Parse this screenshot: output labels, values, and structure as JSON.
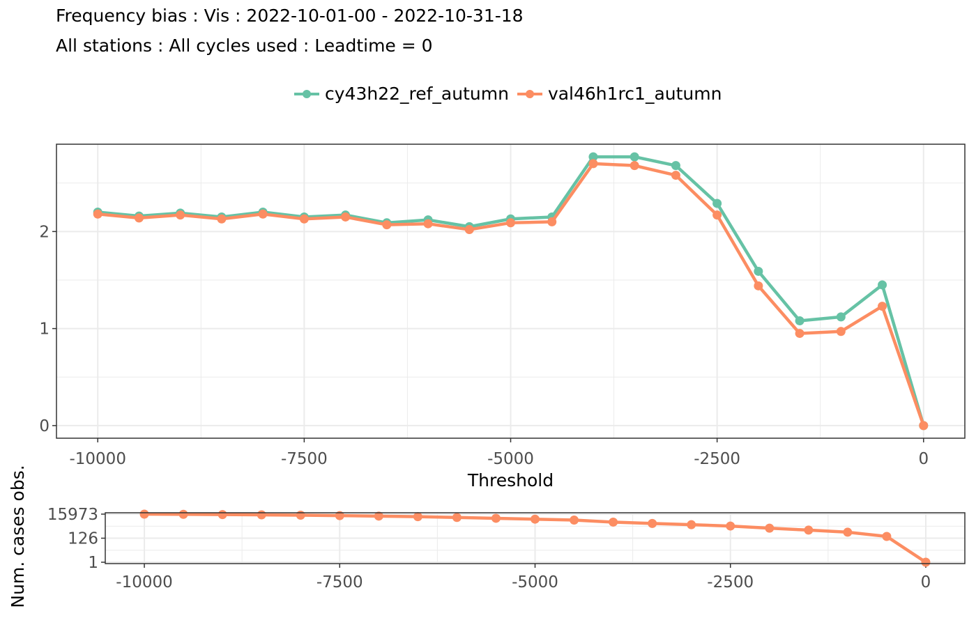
{
  "title": "Frequency bias : Vis : 2022-10-01-00 - 2022-10-31-18",
  "subtitle": "All stations : All cycles used : Leadtime = 0",
  "legend": {
    "placement": "top",
    "items": [
      {
        "label": "cy43h22_ref_autumn",
        "color": "#66c2a5"
      },
      {
        "label": "val46h1rc1_autumn",
        "color": "#fc8d62"
      }
    ]
  },
  "chart_data": [
    {
      "type": "line",
      "xlabel": "Threshold",
      "ylabel": "",
      "xlim": [
        -10500,
        500
      ],
      "ylim": [
        -0.13,
        2.9
      ],
      "xticks": [
        -10000,
        -7500,
        -5000,
        -2500,
        0
      ],
      "xtick_labels": [
        "-10000",
        "-7500",
        "-5000",
        "-2500",
        "0"
      ],
      "yticks": [
        0,
        1,
        2
      ],
      "ytick_labels": [
        "0",
        "1",
        "2"
      ],
      "grid": true,
      "x": [
        -10000,
        -9500,
        -9000,
        -8500,
        -8000,
        -7500,
        -7000,
        -6500,
        -6000,
        -5500,
        -5000,
        -4500,
        -4000,
        -3500,
        -3000,
        -2500,
        -2000,
        -1500,
        -1000,
        -500,
        0
      ],
      "series": [
        {
          "name": "cy43h22_ref_autumn",
          "color": "#66c2a5",
          "values": [
            2.2,
            2.16,
            2.19,
            2.15,
            2.2,
            2.15,
            2.17,
            2.09,
            2.12,
            2.05,
            2.13,
            2.15,
            2.77,
            2.77,
            2.68,
            2.29,
            1.59,
            1.08,
            1.12,
            1.45,
            0.0
          ]
        },
        {
          "name": "val46h1rc1_autumn",
          "color": "#fc8d62",
          "values": [
            2.18,
            2.14,
            2.17,
            2.13,
            2.18,
            2.13,
            2.15,
            2.07,
            2.08,
            2.02,
            2.09,
            2.1,
            2.7,
            2.68,
            2.58,
            2.17,
            1.44,
            0.95,
            0.97,
            1.23,
            0.0
          ]
        }
      ]
    },
    {
      "type": "line",
      "xlabel": "",
      "ylabel": "Num. cases obs.",
      "scale": "log",
      "xlim": [
        -10500,
        500
      ],
      "xticks": [
        -10000,
        -7500,
        -5000,
        -2500,
        0
      ],
      "xtick_labels": [
        "-10000",
        "-7500",
        "-5000",
        "-2500",
        "0"
      ],
      "yticks": [
        1,
        126,
        15973
      ],
      "ytick_labels": [
        "1",
        "126",
        "15973"
      ],
      "grid": true,
      "x": [
        -10000,
        -9500,
        -9000,
        -8500,
        -8000,
        -7500,
        -7000,
        -6500,
        -6000,
        -5500,
        -5000,
        -4500,
        -4000,
        -3500,
        -3000,
        -2500,
        -2000,
        -1500,
        -1000,
        -500,
        0
      ],
      "series": [
        {
          "name": "val46h1rc1_autumn",
          "color": "#fc8d62",
          "values": [
            15900,
            15300,
            14600,
            13800,
            12900,
            11800,
            10700,
            9500,
            8200,
            6900,
            5800,
            4800,
            3200,
            2450,
            1900,
            1450,
            950,
            640,
            420,
            180,
            1
          ]
        }
      ]
    }
  ]
}
